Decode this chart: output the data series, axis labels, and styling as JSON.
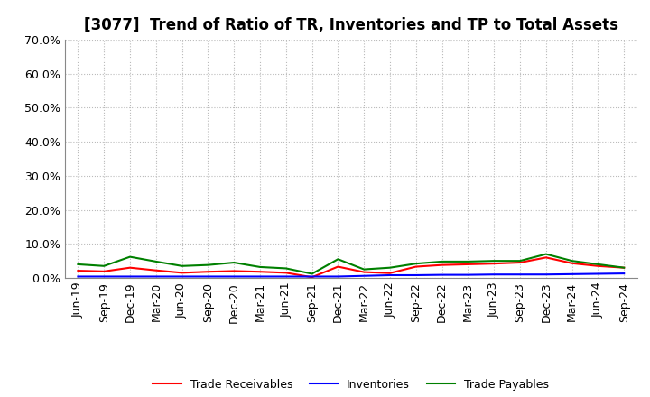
{
  "title": "[3077]  Trend of Ratio of TR, Inventories and TP to Total Assets",
  "labels": [
    "Jun-19",
    "Sep-19",
    "Dec-19",
    "Mar-20",
    "Jun-20",
    "Sep-20",
    "Dec-20",
    "Mar-21",
    "Jun-21",
    "Sep-21",
    "Dec-21",
    "Mar-22",
    "Jun-22",
    "Sep-22",
    "Dec-22",
    "Mar-23",
    "Jun-23",
    "Sep-23",
    "Dec-23",
    "Mar-24",
    "Jun-24",
    "Sep-24"
  ],
  "trade_receivables": [
    0.021,
    0.019,
    0.03,
    0.022,
    0.015,
    0.018,
    0.02,
    0.018,
    0.015,
    0.002,
    0.033,
    0.017,
    0.014,
    0.033,
    0.038,
    0.04,
    0.042,
    0.045,
    0.06,
    0.043,
    0.035,
    0.03
  ],
  "inventories": [
    0.004,
    0.004,
    0.004,
    0.004,
    0.004,
    0.004,
    0.004,
    0.004,
    0.004,
    0.004,
    0.004,
    0.006,
    0.008,
    0.008,
    0.009,
    0.009,
    0.01,
    0.01,
    0.01,
    0.011,
    0.012,
    0.013
  ],
  "trade_payables": [
    0.04,
    0.035,
    0.062,
    0.048,
    0.035,
    0.038,
    0.045,
    0.032,
    0.028,
    0.012,
    0.055,
    0.025,
    0.03,
    0.042,
    0.048,
    0.048,
    0.05,
    0.05,
    0.07,
    0.05,
    0.04,
    0.03
  ],
  "tr_color": "#ff0000",
  "inv_color": "#0000ff",
  "tp_color": "#008000",
  "ylim": [
    0.0,
    0.7
  ],
  "yticks": [
    0.0,
    0.1,
    0.2,
    0.3,
    0.4,
    0.5,
    0.6,
    0.7
  ],
  "bg_color": "#ffffff",
  "plot_bg_color": "#ffffff",
  "grid_color": "#bbbbbb",
  "legend_tr": "Trade Receivables",
  "legend_inv": "Inventories",
  "legend_tp": "Trade Payables",
  "title_fontsize": 12,
  "tick_fontsize": 9,
  "legend_fontsize": 9
}
